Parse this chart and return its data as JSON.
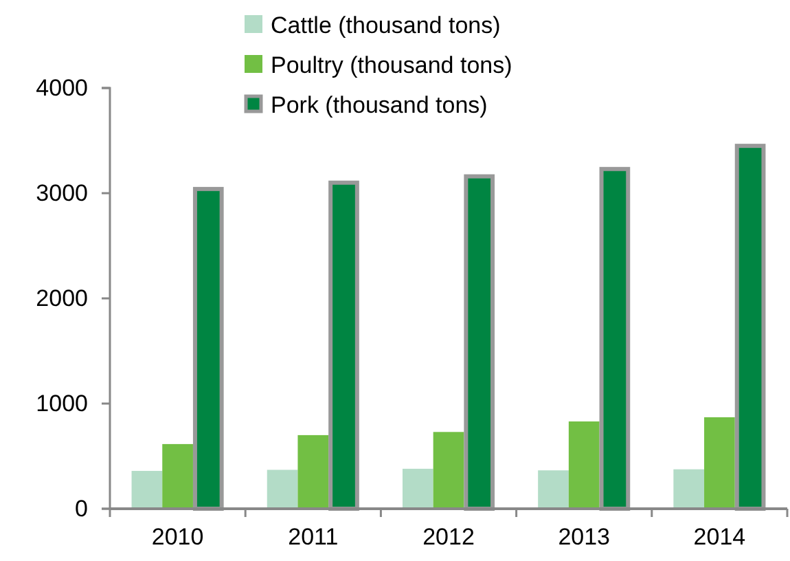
{
  "chart_data": {
    "type": "bar",
    "categories": [
      "2010",
      "2011",
      "2012",
      "2013",
      "2014"
    ],
    "series": [
      {
        "name": "Cattle (thousand tons)",
        "color": "#b3dcc7",
        "values": [
          360,
          370,
          380,
          365,
          375
        ]
      },
      {
        "name": "Poultry (thousand tons)",
        "color": "#72bf44",
        "values": [
          615,
          700,
          730,
          830,
          870
        ]
      },
      {
        "name": "Pork (thousand tons)",
        "color": "#008542",
        "values": [
          3040,
          3100,
          3160,
          3230,
          3450
        ]
      }
    ],
    "ylim": [
      0,
      4000
    ],
    "yticks": [
      0,
      1000,
      2000,
      3000,
      4000
    ],
    "grid": false,
    "legend": "top"
  }
}
